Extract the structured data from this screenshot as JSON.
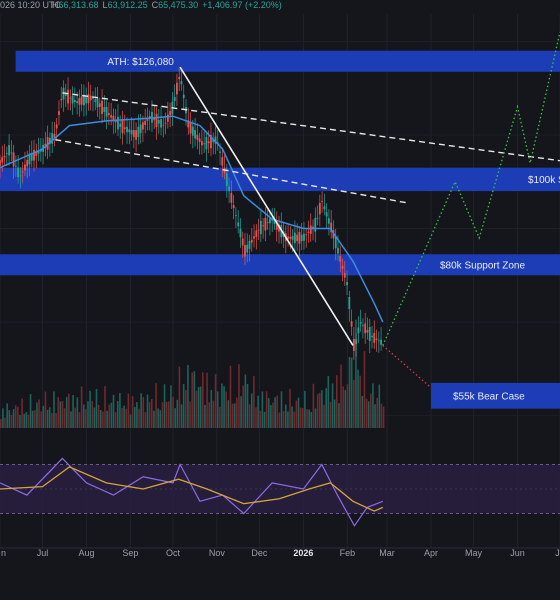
{
  "header": {
    "date_fragment": "026 10:20 UTC",
    "ohlc": [
      {
        "label": "H",
        "value": "66,313.68",
        "color": "#26a69a"
      },
      {
        "label": "L",
        "value": "63,912.25",
        "color": "#26a69a"
      },
      {
        "label": "C",
        "value": "65,475.30",
        "color": "#26a69a"
      },
      {
        "label": "",
        "value": "+1,406.97 (+2.20%)",
        "color": "#26a69a"
      }
    ]
  },
  "colors": {
    "background": "#14161c",
    "zone": "#1e3fc0",
    "ma_line": "#3d8be0",
    "trend_line": "#f2f2f2",
    "bull_projection": "#3fbf4a",
    "bear_projection": "#d9394a",
    "rsi_line": "#8e6ae6",
    "rsi_ma": "#d4a43a",
    "rsi_band": "#2a1f44",
    "volume_up": "#1e6b63",
    "volume_down": "#7a2b30",
    "candle_up": "#26a69a",
    "candle_down": "#ef5350"
  },
  "chart_data": {
    "type": "line",
    "title": "",
    "x_axis": {
      "tick_labels": [
        "n",
        "Jul",
        "Aug",
        "Sep",
        "Oct",
        "Nov",
        "Dec",
        "2026",
        "Feb",
        "Mar",
        "Apr",
        "May",
        "Jun",
        "Ju"
      ],
      "tick_dates": [
        "2025-06-01",
        "2025-07-01",
        "2025-08-01",
        "2025-09-01",
        "2025-10-01",
        "2025-11-01",
        "2025-12-01",
        "2026-01-01",
        "2026-02-01",
        "2026-03-01",
        "2026-04-01",
        "2026-05-01",
        "2026-06-01",
        "2026-07-01"
      ],
      "range": [
        "2025-06-01",
        "2026-07-01"
      ]
    },
    "y_range": [
      48000,
      135000
    ],
    "zones": [
      {
        "label": "ATH: $126,080",
        "low": 123500,
        "high": 128000,
        "start": "2025-06-12",
        "end": "2026-07-01"
      },
      {
        "label": "$100k S",
        "low": 98000,
        "high": 103000,
        "start": "2025-06-01",
        "end": "2026-07-01"
      },
      {
        "label": "$80k Support Zone",
        "low": 80000,
        "high": 84500,
        "start": "2025-06-01",
        "end": "2026-07-01"
      },
      {
        "label": "$55k Bear Case",
        "low": 51500,
        "high": 57000,
        "start": "2026-04-01",
        "end": "2026-07-01"
      }
    ],
    "price_series": {
      "name": "",
      "x": [
        "2025-06-01",
        "2025-06-08",
        "2025-06-15",
        "2025-06-22",
        "2025-07-01",
        "2025-07-10",
        "2025-07-15",
        "2025-07-25",
        "2025-08-05",
        "2025-08-15",
        "2025-08-25",
        "2025-09-05",
        "2025-09-15",
        "2025-09-25",
        "2025-10-01",
        "2025-10-06",
        "2025-10-12",
        "2025-10-22",
        "2025-11-01",
        "2025-11-10",
        "2025-11-21",
        "2025-12-01",
        "2025-12-10",
        "2025-12-20",
        "2026-01-01",
        "2026-01-10",
        "2026-01-14",
        "2026-01-22",
        "2026-02-01",
        "2026-02-06",
        "2026-02-10",
        "2026-02-18",
        "2026-02-26"
      ],
      "values": [
        104000,
        107000,
        101000,
        105000,
        107000,
        110000,
        119000,
        117000,
        118000,
        115000,
        112000,
        110000,
        114000,
        112000,
        116000,
        123000,
        112000,
        108000,
        109000,
        98000,
        85000,
        90000,
        92000,
        88000,
        88000,
        91000,
        96000,
        89000,
        78000,
        64000,
        70000,
        67000,
        65475
      ]
    },
    "moving_average": {
      "name": "",
      "x": [
        "2025-06-01",
        "2025-07-01",
        "2025-07-20",
        "2025-08-15",
        "2025-09-10",
        "2025-10-01",
        "2025-10-20",
        "2025-11-05",
        "2025-11-20",
        "2025-12-10",
        "2026-01-01",
        "2026-01-20",
        "2026-02-05",
        "2026-02-20",
        "2026-02-26"
      ],
      "values": [
        103000,
        107000,
        112000,
        113000,
        113500,
        114000,
        112000,
        107000,
        97000,
        92000,
        90000,
        90000,
        83000,
        74000,
        70000
      ]
    },
    "resistance_lines": [
      {
        "style": "dashed",
        "x": [
          "2025-07-15",
          "2026-07-01"
        ],
        "y": [
          119000,
          104500
        ]
      },
      {
        "style": "dashed",
        "x": [
          "2025-07-10",
          "2026-03-15"
        ],
        "y": [
          109000,
          95500
        ]
      }
    ],
    "trend_line": {
      "style": "solid",
      "x": [
        "2025-10-06",
        "2026-02-05"
      ],
      "y": [
        124500,
        65000
      ]
    },
    "bull_projection": {
      "style": "dotted",
      "x": [
        "2026-02-26",
        "2026-04-18",
        "2026-05-05",
        "2026-06-01",
        "2026-06-10",
        "2026-07-01"
      ],
      "y": [
        65000,
        100000,
        88000,
        116000,
        104000,
        132000
      ]
    },
    "bear_projection": {
      "style": "dotted",
      "x": [
        "2026-02-26",
        "2026-04-01"
      ],
      "y": [
        65000,
        56000
      ]
    },
    "volume": {
      "x": [
        "2025-06-01",
        "2025-07-01",
        "2025-08-01",
        "2025-09-01",
        "2025-10-01",
        "2025-10-10",
        "2025-11-01",
        "2025-11-20",
        "2025-12-01",
        "2026-01-01",
        "2026-02-01",
        "2026-02-06",
        "2026-02-15",
        "2026-02-26"
      ],
      "values": [
        0.2,
        0.3,
        0.35,
        0.3,
        0.4,
        0.6,
        0.45,
        0.55,
        0.35,
        0.3,
        0.6,
        1.0,
        0.45,
        0.35
      ]
    },
    "rsi": {
      "range": [
        10,
        90
      ],
      "bands": [
        30,
        70
      ],
      "x": [
        "2025-06-01",
        "2025-06-20",
        "2025-07-15",
        "2025-08-01",
        "2025-08-20",
        "2025-09-10",
        "2025-10-01",
        "2025-10-06",
        "2025-10-20",
        "2025-11-05",
        "2025-11-20",
        "2025-12-10",
        "2026-01-01",
        "2026-01-14",
        "2026-01-25",
        "2026-02-06",
        "2026-02-15",
        "2026-02-26"
      ],
      "values": [
        55,
        45,
        75,
        55,
        45,
        60,
        55,
        70,
        40,
        45,
        30,
        55,
        50,
        70,
        45,
        20,
        35,
        40
      ]
    },
    "rsi_ma": {
      "x": [
        "2025-06-01",
        "2025-07-01",
        "2025-07-20",
        "2025-08-15",
        "2025-09-10",
        "2025-10-05",
        "2025-10-25",
        "2025-11-20",
        "2025-12-15",
        "2026-01-05",
        "2026-01-20",
        "2026-02-05",
        "2026-02-20",
        "2026-02-26"
      ],
      "values": [
        50,
        52,
        68,
        55,
        50,
        58,
        50,
        38,
        42,
        50,
        55,
        40,
        32,
        35
      ]
    }
  }
}
